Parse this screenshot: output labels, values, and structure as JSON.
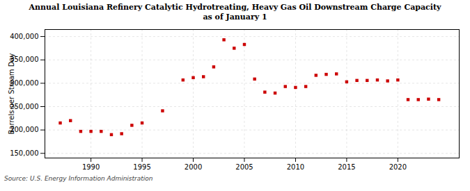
{
  "chart_data": {
    "type": "scatter",
    "title": "Annual Louisiana Refinery Catalytic Hydrotreating, Heavy Gas Oil Downstream Charge Capacity",
    "subtitle": "as of January 1",
    "ylabel": "Barrels per Stream Day",
    "source": "Source: U.S. Energy Information Administration",
    "x": [
      1987,
      1988,
      1989,
      1990,
      1991,
      1992,
      1993,
      1994,
      1995,
      1997,
      1999,
      2000,
      2001,
      2002,
      2003,
      2004,
      2005,
      2006,
      2007,
      2008,
      2009,
      2010,
      2011,
      2012,
      2013,
      2014,
      2015,
      2016,
      2017,
      2018,
      2019,
      2020,
      2021,
      2022,
      2023,
      2024
    ],
    "values": [
      215000,
      220000,
      197000,
      197000,
      197000,
      190000,
      192000,
      210000,
      215000,
      241000,
      307000,
      312000,
      314000,
      335000,
      393000,
      375000,
      383000,
      309000,
      281000,
      279000,
      293000,
      291000,
      293000,
      317000,
      319000,
      320000,
      303000,
      306000,
      306000,
      307000,
      305000,
      307000,
      265000,
      265000,
      266000,
      265000
    ],
    "color": "#cc0000",
    "marker": "square",
    "xlim": [
      1985.5,
      2026
    ],
    "ylim": [
      140000,
      415000
    ],
    "xticks": [
      1990,
      1995,
      2000,
      2005,
      2010,
      2015,
      2020
    ],
    "yticks": [
      {
        "value": 150000,
        "label": "150,000"
      },
      {
        "value": 200000,
        "label": "200,000"
      },
      {
        "value": 250000,
        "label": "250,000"
      },
      {
        "value": 300000,
        "label": "300,000"
      },
      {
        "value": 350000,
        "label": "350,000"
      },
      {
        "value": 400000,
        "label": "400,000"
      }
    ],
    "grid": true
  }
}
